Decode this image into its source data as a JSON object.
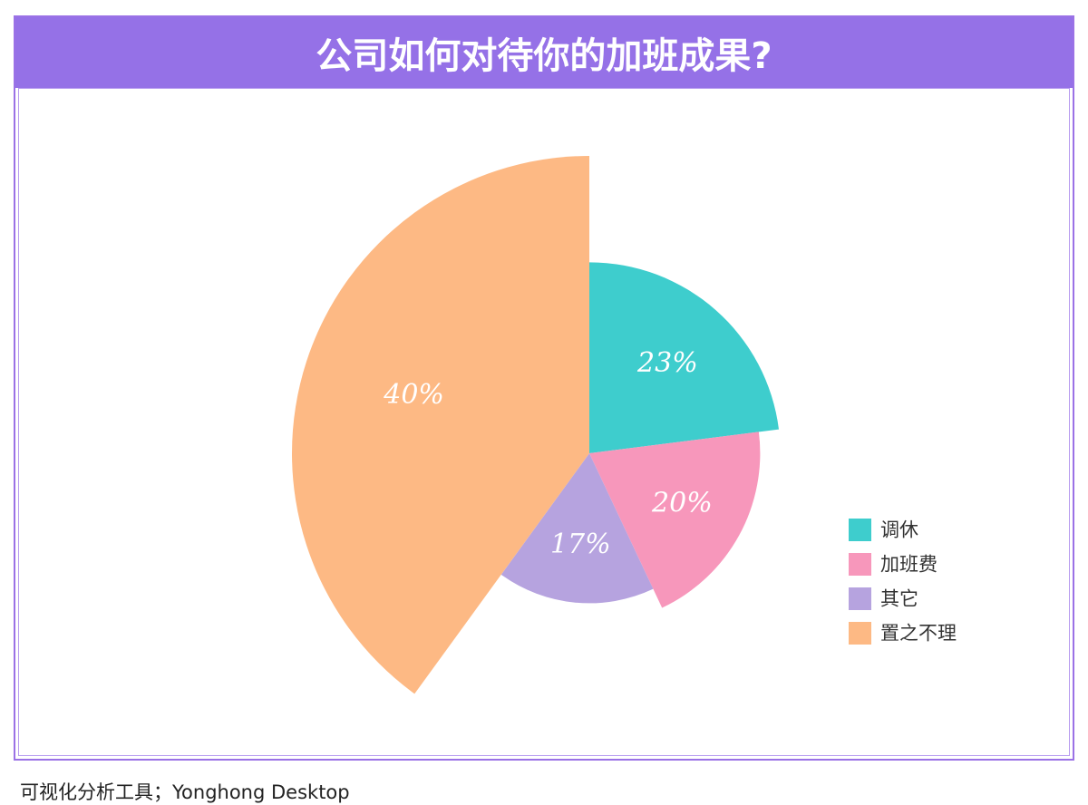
{
  "title": "公司如何对待你的加班成果?",
  "footer": "可视化分析工具；Yonghong Desktop",
  "colors": {
    "title_bar": "#9571e7",
    "frame": "#9b72e6"
  },
  "chart_data": {
    "type": "pie",
    "variant": "rose",
    "title": "公司如何对待你的加班成果?",
    "slices": [
      {
        "label": "调休",
        "value": 23,
        "display": "23%",
        "color": "#3ecdcd"
      },
      {
        "label": "加班费",
        "value": 20,
        "display": "20%",
        "color": "#f797bb"
      },
      {
        "label": "其它",
        "value": 17,
        "display": "17%",
        "color": "#b6a3df"
      },
      {
        "label": "置之不理",
        "value": 40,
        "display": "40%",
        "color": "#fdb984"
      }
    ],
    "legend": {
      "position": "right"
    }
  }
}
